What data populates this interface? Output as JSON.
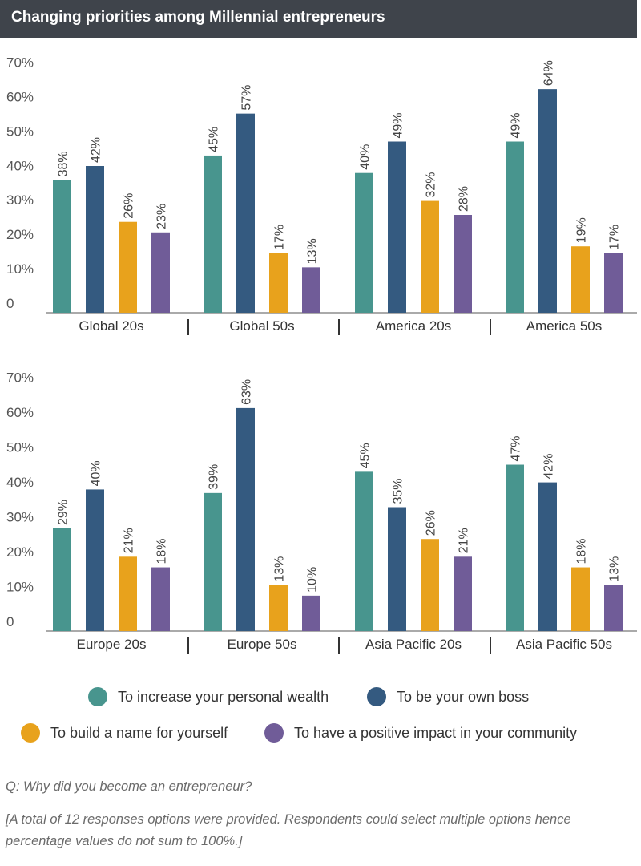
{
  "title": "Changing priorities among Millennial entrepreneurs",
  "colors": {
    "title_bg": "#3f444b",
    "series": [
      "#48958e",
      "#345a80",
      "#e8a21c",
      "#705c98"
    ],
    "axis": "#555555"
  },
  "chart_data": {
    "type": "bar",
    "ylabel": "",
    "ylim": [
      0,
      70
    ],
    "yticks": [
      "0",
      "10%",
      "20%",
      "30%",
      "40%",
      "50%",
      "60%",
      "70%"
    ],
    "legend_position": "bottom",
    "series_names": [
      "To increase your personal wealth",
      "To be your own boss",
      "To build a name for yourself",
      "To have a positive impact in your community"
    ],
    "panels": [
      {
        "categories": [
          "Global 20s",
          "Global 50s",
          "America 20s",
          "America 50s"
        ],
        "values": [
          [
            38,
            42,
            26,
            23
          ],
          [
            45,
            57,
            17,
            13
          ],
          [
            40,
            49,
            32,
            28
          ],
          [
            49,
            64,
            19,
            17
          ]
        ],
        "labels": [
          [
            "38%",
            "42%",
            "26%",
            "23%"
          ],
          [
            "45%",
            "57%",
            "17%",
            "13%"
          ],
          [
            "40%",
            "49%",
            "32%",
            "28%"
          ],
          [
            "49%",
            "64%",
            "19%",
            "17%"
          ]
        ]
      },
      {
        "categories": [
          "Europe 20s",
          "Europe 50s",
          "Asia Pacific 20s",
          "Asia Pacific 50s"
        ],
        "values": [
          [
            29,
            40,
            21,
            18
          ],
          [
            39,
            63,
            13,
            10
          ],
          [
            45,
            35,
            26,
            21
          ],
          [
            47,
            42,
            18,
            13
          ]
        ],
        "labels": [
          [
            "29%",
            "40%",
            "21%",
            "18%"
          ],
          [
            "39%",
            "63%",
            "13%",
            "10%"
          ],
          [
            "45%",
            "35%",
            "26%",
            "21%"
          ],
          [
            "47%",
            "42%",
            "18%",
            "13%"
          ]
        ]
      }
    ]
  },
  "legend": [
    "To increase your personal wealth",
    "To be your own boss",
    "To build a name for yourself",
    "To have a positive impact in your community"
  ],
  "footnotes": {
    "question": "Q: Why did you become an entrepreneur?",
    "note_line1": "[A total of 12 responses options were provided. Respondents could select multiple options hence",
    "note_line2": "percentage values do not sum to 100%.]"
  }
}
